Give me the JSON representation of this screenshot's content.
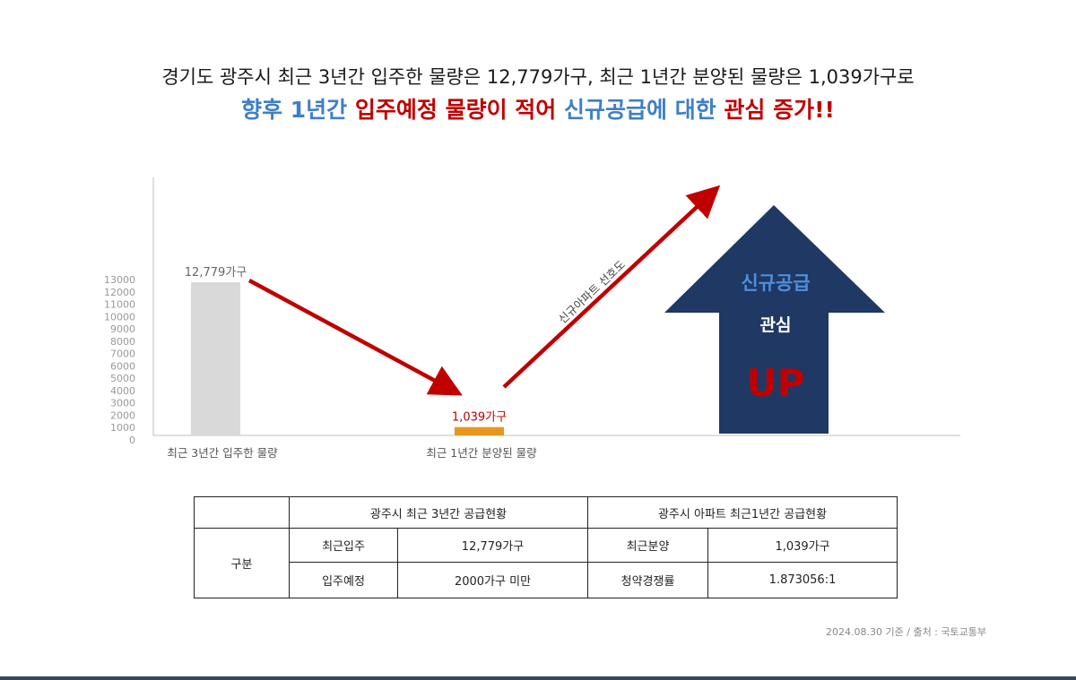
{
  "headline": {
    "line1": "경기도 광주시 최근 3년간 입주한 물량은 12,779가구, 최근 1년간 분양된 물량은 1,039가구로",
    "line2_parts": [
      {
        "text": "향후 1년간 ",
        "color": "blue"
      },
      {
        "text": "입주예정 물량이 적어 ",
        "color": "red"
      },
      {
        "text": "신규공급에 대한 ",
        "color": "blue"
      },
      {
        "text": "관심 증가!!",
        "color": "red"
      }
    ]
  },
  "colors": {
    "blue": "#3f7fc7",
    "red": "#c00000",
    "bar_gray": "#d9d9d9",
    "bar_orange": "#e8961e",
    "arrow_red": "#c00000",
    "up_arrow_navy": "#1f3864"
  },
  "chart_data": {
    "type": "bar",
    "categories": [
      "최근 3년간 입주한 물량",
      "최근 1년간 분양된 물량"
    ],
    "values": [
      12779,
      1039
    ],
    "data_labels": [
      "12,779가구",
      "1,039가구"
    ],
    "yticks": [
      0,
      1000,
      2000,
      3000,
      4000,
      5000,
      6000,
      7000,
      8000,
      9000,
      10000,
      11000,
      12000,
      13000
    ],
    "ylim": [
      0,
      13000
    ],
    "grid": false,
    "annotation_arrow_label": "신규아파트 선호도",
    "up_arrow": {
      "line1": "신규공급",
      "line2": "관심",
      "line3": "UP"
    }
  },
  "table": {
    "header_blank": "",
    "group1": "광주시 최근 3년간 공급현황",
    "group2": "광주시 아파트 최근1년간 공급현황",
    "row_label": "구분",
    "rows": [
      {
        "k1": "최근입주",
        "v1": "12,779가구",
        "k2": "최근분양",
        "v2": "1,039가구"
      },
      {
        "k1": "입주예정",
        "v1": "2000가구 미만",
        "k2": "청약경쟁률",
        "v2": "1.873056:1"
      }
    ]
  },
  "footnote": "2024.08.30 기준 / 출처 : 국토교통부"
}
